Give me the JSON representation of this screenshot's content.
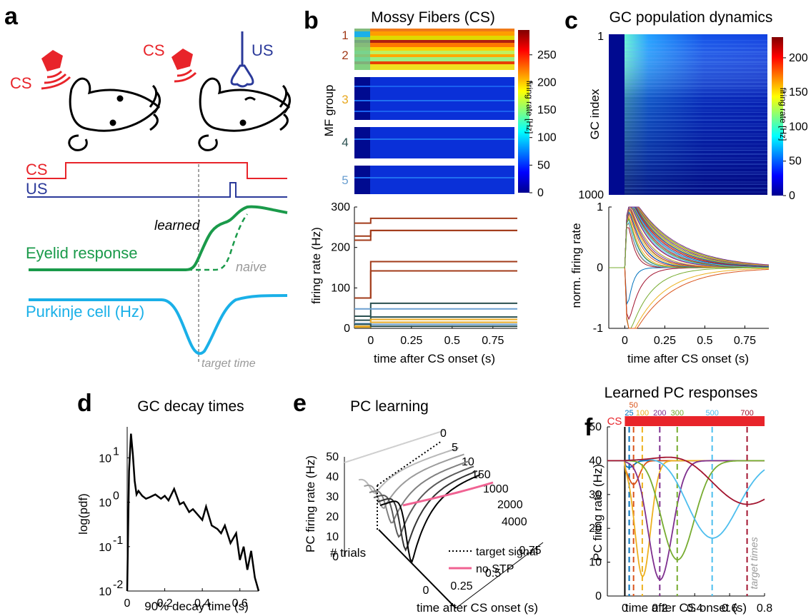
{
  "panels": {
    "a": {
      "letter": "a",
      "cs_label": "CS",
      "us_label": "US",
      "cs_trace_label": "CS",
      "us_trace_label": "US",
      "learned_label": "learned",
      "eyelid_label": "Eyelid response",
      "naive_label": "naive",
      "purkinje_label": "Purkinje cell (Hz)",
      "target_time_label": "target time"
    },
    "b": {
      "letter": "b",
      "title": "Mossy Fibers (CS)",
      "ylabel_top": "MF group",
      "groups": [
        "1",
        "2",
        "3",
        "4",
        "5"
      ],
      "colorbar_label": "firing rate [Hz]",
      "colorbar_ticks": [
        "250",
        "200",
        "150",
        "100",
        "50",
        "0"
      ],
      "ylabel": "firing rate (Hz)",
      "yticks": [
        "300",
        "200",
        "100",
        "0"
      ],
      "xticks": [
        "0",
        "0.25",
        "0.5",
        "0.75"
      ],
      "xlabel": "time after CS onset (s)"
    },
    "c": {
      "letter": "c",
      "title": "GC population dynamics",
      "ylabel_top": "GC index",
      "index_ticks": [
        "1",
        "1000"
      ],
      "colorbar_label": "firing rate [Hz]",
      "colorbar_ticks": [
        "200",
        "150",
        "100",
        "50",
        "0"
      ],
      "ylabel": "norm. firing rate",
      "yticks": [
        "1",
        "0",
        "-1"
      ],
      "xticks": [
        "0",
        "0.25",
        "0.5",
        "0.75"
      ],
      "xlabel": "time after CS onset (s)"
    },
    "d": {
      "letter": "d",
      "title": "GC decay times",
      "ylabel": "log(pdf)",
      "xlabel": "90% decay time (s)",
      "xticks": [
        "0",
        "0.2",
        "0.4",
        "0.6"
      ],
      "yticks": [
        {
          "base": "10",
          "exp": "1"
        },
        {
          "base": "10",
          "exp": "0"
        },
        {
          "base": "10",
          "exp": "-1"
        },
        {
          "base": "10",
          "exp": "-2"
        }
      ]
    },
    "e": {
      "letter": "e",
      "title": "PC learning",
      "ylabel": "PC firing rate (Hz)",
      "yticks": [
        "50",
        "40",
        "30",
        "20",
        "10",
        "0"
      ],
      "trials_label": "# trials",
      "trial_labels": [
        "0",
        "5",
        "10",
        "150",
        "1000",
        "2000",
        "4000"
      ],
      "xticks": [
        "0",
        "0.25",
        "0.5",
        "0.75"
      ],
      "xlabel": "time after CS onset (s)",
      "legend_target": "target signal",
      "legend_nostp": "no STP"
    },
    "f": {
      "letter": "f",
      "title": "Learned PC responses",
      "cs_label": "CS",
      "target_labels": [
        "25",
        "50",
        "100",
        "200",
        "300",
        "500",
        "700"
      ],
      "ylabel": "PC firing rate (Hz)",
      "yticks": [
        "50",
        "40",
        "30",
        "20",
        "10",
        "0"
      ],
      "xticks": [
        "0",
        "0.2",
        "0.4",
        "0.6",
        "0.8"
      ],
      "xlabel": "time after CS onset (s)",
      "target_times_label": "target times"
    }
  },
  "colors": {
    "cs": "#e8242a",
    "us": "#2b3a9a",
    "eyelid": "#1a9a4a",
    "purkinje": "#1ab0e8",
    "nostp": "#f06292",
    "target_colors": [
      "#0072bd",
      "#d95319",
      "#edb120",
      "#7e2f8e",
      "#77ac30",
      "#4dbeee",
      "#a2142f"
    ]
  },
  "chart_data": [
    {
      "panel": "b-bottom",
      "type": "line",
      "title": "",
      "xlabel": "time after CS onset (s)",
      "ylabel": "firing rate (Hz)",
      "xlim": [
        -0.1,
        0.9
      ],
      "ylim": [
        0,
        300
      ],
      "series": [
        {
          "color": "#a23b1a",
          "pre": 260,
          "post": 272
        },
        {
          "color": "#a23b1a",
          "pre": 228,
          "post": 242
        },
        {
          "color": "#a23b1a",
          "pre": 218,
          "post": 242
        },
        {
          "color": "#a23b1a",
          "pre": 75,
          "post": 165
        },
        {
          "color": "#a23b1a",
          "pre": 75,
          "post": 142
        },
        {
          "color": "#2a5050",
          "pre": 30,
          "post": 62
        },
        {
          "color": "#2a5050",
          "pre": 20,
          "post": 28
        },
        {
          "color": "#6a9fd0",
          "pre": 48,
          "post": 48
        },
        {
          "color": "#e8a820",
          "pre": 5,
          "post": 22
        },
        {
          "color": "#e8a820",
          "pre": 3,
          "post": 15
        },
        {
          "color": "#6a9fd0",
          "pre": 12,
          "post": 10
        },
        {
          "color": "#2a5050",
          "pre": 10,
          "post": 5
        }
      ]
    },
    {
      "panel": "c-bottom",
      "type": "line",
      "xlabel": "time after CS onset (s)",
      "ylabel": "norm. firing rate",
      "xlim": [
        -0.1,
        0.9
      ],
      "ylim": [
        -1,
        1
      ]
    },
    {
      "panel": "d",
      "type": "line",
      "title": "GC decay times",
      "xlabel": "90% decay time (s)",
      "ylabel": "log(pdf)",
      "yscale": "log",
      "xlim": [
        0,
        0.7
      ],
      "ylim": [
        0.01,
        50
      ],
      "x": [
        0.0,
        0.01,
        0.02,
        0.03,
        0.04,
        0.05,
        0.06,
        0.08,
        0.1,
        0.12,
        0.15,
        0.18,
        0.2,
        0.22,
        0.25,
        0.28,
        0.3,
        0.33,
        0.35,
        0.38,
        0.4,
        0.42,
        0.45,
        0.48,
        0.5,
        0.52,
        0.55,
        0.58,
        0.6,
        0.62,
        0.64,
        0.66,
        0.68,
        0.7
      ],
      "y": [
        0.01,
        5,
        35,
        12,
        3,
        1.5,
        1.8,
        1.4,
        1.2,
        1.3,
        1.5,
        1.2,
        1.4,
        1.1,
        2.0,
        0.9,
        1.0,
        0.6,
        0.7,
        0.5,
        0.4,
        0.8,
        0.3,
        0.25,
        0.2,
        0.3,
        0.12,
        0.2,
        0.05,
        0.1,
        0.03,
        0.08,
        0.02,
        0.01
      ]
    },
    {
      "panel": "e",
      "type": "line",
      "title": "PC learning",
      "ylabel": "PC firing rate (Hz)",
      "xlabel": "time after CS onset (s)",
      "ylim": [
        0,
        50
      ],
      "series": [
        {
          "name": "0"
        },
        {
          "name": "5"
        },
        {
          "name": "10"
        },
        {
          "name": "150"
        },
        {
          "name": "1000"
        },
        {
          "name": "2000"
        },
        {
          "name": "4000"
        }
      ]
    },
    {
      "panel": "f",
      "type": "line",
      "title": "Learned PC responses",
      "xlabel": "time after CS onset (s)",
      "ylabel": "PC firing rate (Hz)",
      "xlim": [
        -0.1,
        0.8
      ],
      "ylim": [
        0,
        50
      ],
      "baseline": 40,
      "series": [
        {
          "name": "25",
          "target": 0.025,
          "min": 38
        },
        {
          "name": "50",
          "target": 0.05,
          "min": 33
        },
        {
          "name": "100",
          "target": 0.1,
          "min": 5
        },
        {
          "name": "200",
          "target": 0.2,
          "min": 4.5
        },
        {
          "name": "300",
          "target": 0.3,
          "min": 10.5
        },
        {
          "name": "500",
          "target": 0.5,
          "min": 17
        },
        {
          "name": "700",
          "target": 0.7,
          "min": 27
        }
      ]
    }
  ]
}
